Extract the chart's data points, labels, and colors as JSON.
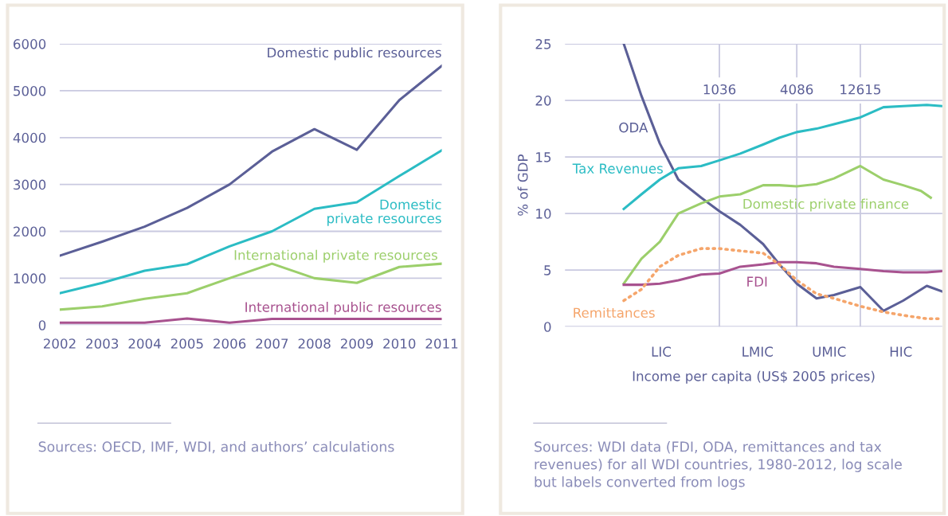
{
  "chart_data": [
    {
      "type": "line",
      "x": [
        2002,
        2003,
        2004,
        2005,
        2006,
        2007,
        2008,
        2009,
        2010,
        2011
      ],
      "xlim": [
        2002,
        2011
      ],
      "xticks": [
        2002,
        2003,
        2004,
        2005,
        2006,
        2007,
        2008,
        2009,
        2010,
        2011
      ],
      "ylim": [
        0,
        6000
      ],
      "yticks": [
        0,
        1000,
        2000,
        3000,
        4000,
        5000,
        6000
      ],
      "grid": "y",
      "legend": false,
      "series": [
        {
          "name": "Domestic public resources",
          "color": "#5b5f97",
          "values": [
            1480,
            1780,
            2100,
            2500,
            3000,
            3700,
            4180,
            3740,
            4800,
            5530
          ]
        },
        {
          "name": "Domestic\nprivate resources",
          "color": "#2bbcc4",
          "values": [
            680,
            900,
            1160,
            1300,
            1680,
            2000,
            2480,
            2620,
            3180,
            3730
          ]
        },
        {
          "name": "International private resources",
          "color": "#9ccf6b",
          "values": [
            330,
            400,
            560,
            680,
            1000,
            1310,
            1000,
            900,
            1240,
            1310
          ]
        },
        {
          "name": "International public resources",
          "color": "#a8528f",
          "values": [
            50,
            50,
            50,
            140,
            50,
            130,
            130,
            130,
            130,
            130
          ]
        }
      ],
      "annotations": [
        "Sources: OECD, IMF, WDI, and authors’ calculations"
      ]
    },
    {
      "type": "line",
      "log": "x",
      "x": [
        190,
        260,
        360,
        500,
        750,
        1036,
        1500,
        2250,
        3000,
        4086,
        5800,
        7900,
        12615,
        19000,
        27000,
        41000,
        54000
      ],
      "xlim": [
        67,
        54000
      ],
      "xticks": [
        1036,
        4086,
        12615
      ],
      "ylim": [
        0,
        25
      ],
      "yticks": [
        0,
        5,
        10,
        15,
        20,
        25
      ],
      "grid": "y",
      "legend": false,
      "xlabel": "Income per capita (US$ 2005 prices)",
      "ylabel": "% of GDP",
      "ref_lines": [
        {
          "axis": "x",
          "value": 1036,
          "color": "#c9c9e0"
        },
        {
          "axis": "x",
          "value": 4086,
          "color": "#c9c9e0"
        },
        {
          "axis": "x",
          "value": 12615,
          "color": "#c9c9e0"
        }
      ],
      "series": [
        {
          "name": "ODA",
          "color": "#5b5f97",
          "values": [
            25,
            20.4,
            16.2,
            13.0,
            11.4,
            10.2,
            9.0,
            7.3,
            5.5,
            3.8,
            2.5,
            2.8,
            3.5,
            1.4,
            2.3,
            3.6,
            3.1
          ]
        },
        {
          "name": "Tax Revenues",
          "color": "#2bbcc4",
          "values": [
            10.4,
            11.7,
            13.0,
            14.0,
            14.2,
            14.7,
            15.3,
            16.1,
            16.7,
            17.2,
            17.5,
            17.9,
            18.5,
            19.4,
            19.5,
            19.6,
            19.5
          ]
        },
        {
          "name": "Domestic private finance",
          "color": "#9ccf6b",
          "x": [
            190,
            260,
            360,
            500,
            750,
            1036,
            1500,
            2250,
            3000,
            4086,
            5800,
            7900,
            12615,
            19000,
            27000,
            37000,
            44000
          ],
          "values": [
            3.8,
            6.0,
            7.5,
            10.0,
            10.9,
            11.5,
            11.7,
            12.5,
            12.5,
            12.4,
            12.6,
            13.1,
            14.2,
            13.0,
            12.5,
            12.0,
            11.4
          ]
        },
        {
          "name": "FDI",
          "color": "#a8528f",
          "values": [
            3.7,
            3.7,
            3.8,
            4.1,
            4.6,
            4.7,
            5.3,
            5.5,
            5.7,
            5.7,
            5.6,
            5.3,
            5.1,
            4.9,
            4.8,
            4.8,
            4.9
          ]
        },
        {
          "name": "Remittances",
          "color": "#f5a56b",
          "line_style": "dotted",
          "values": [
            2.3,
            3.3,
            5.3,
            6.3,
            6.9,
            6.9,
            6.7,
            6.5,
            5.5,
            4.1,
            2.9,
            2.5,
            1.8,
            1.3,
            1.0,
            0.7,
            0.7
          ]
        }
      ],
      "annotations": [
        "LIC",
        "LMIC",
        "UMIC",
        "HIC",
        "Sources: WDI data (FDI, ODA, remittances and tax\nrevenues) for all WDI countries, 1980-2012, log scale\nbut labels converted from logs"
      ]
    }
  ]
}
